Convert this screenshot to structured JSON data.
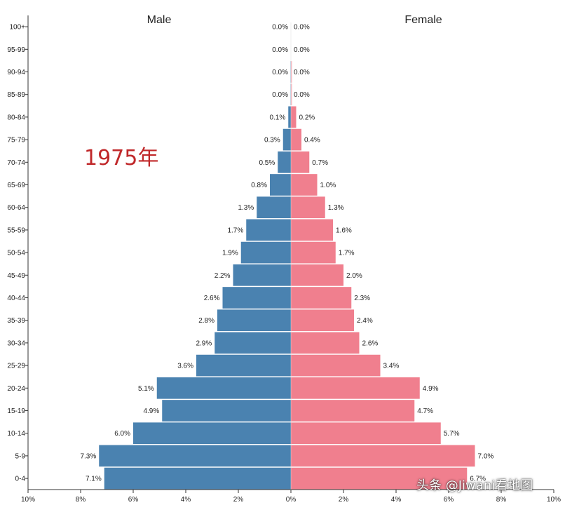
{
  "annotation": "1975年",
  "watermark": "头条 @Jiwani看地图",
  "colors": {
    "male": "#4a82b0",
    "female": "#f07f8e",
    "axis": "#333333"
  },
  "chart_data": {
    "type": "bar",
    "orientation": "horizontal",
    "series_labels": [
      "Male",
      "Female"
    ],
    "categories": [
      "100+",
      "95-99",
      "90-94",
      "85-89",
      "80-84",
      "75-79",
      "70-74",
      "65-69",
      "60-64",
      "55-59",
      "50-54",
      "45-49",
      "40-44",
      "35-39",
      "30-34",
      "25-29",
      "20-24",
      "15-19",
      "10-14",
      "5-9",
      "0-4"
    ],
    "series": [
      {
        "name": "Male",
        "values": [
          0.0,
          0.0,
          0.0,
          0.0,
          0.1,
          0.3,
          0.5,
          0.8,
          1.3,
          1.7,
          1.9,
          2.2,
          2.6,
          2.8,
          2.9,
          3.6,
          5.1,
          4.9,
          6.0,
          7.3,
          7.1
        ]
      },
      {
        "name": "Female",
        "values": [
          0.0,
          0.0,
          0.0,
          0.0,
          0.2,
          0.4,
          0.7,
          1.0,
          1.3,
          1.6,
          1.7,
          2.0,
          2.3,
          2.4,
          2.6,
          3.4,
          4.9,
          4.7,
          5.7,
          7.0,
          6.7
        ]
      }
    ],
    "value_labels": {
      "Male": [
        "0.0%",
        "0.0%",
        "0.0%",
        "0.0%",
        "0.1%",
        "0.3%",
        "0.5%",
        "0.8%",
        "1.3%",
        "1.7%",
        "1.9%",
        "2.2%",
        "2.6%",
        "2.8%",
        "2.9%",
        "3.6%",
        "5.1%",
        "4.9%",
        "6.0%",
        "7.3%",
        "7.1%"
      ],
      "Female": [
        "0.0%",
        "0.0%",
        "0.0%",
        "0.0%",
        "0.2%",
        "0.4%",
        "0.7%",
        "1.0%",
        "1.3%",
        "1.6%",
        "1.7%",
        "2.0%",
        "2.3%",
        "2.4%",
        "2.6%",
        "3.4%",
        "4.9%",
        "4.7%",
        "5.7%",
        "7.0%",
        "6.7%"
      ]
    },
    "xlim": [
      -10,
      10
    ],
    "xticks": [
      -10,
      -8,
      -6,
      -4,
      -2,
      0,
      2,
      4,
      6,
      8,
      10
    ],
    "xtick_labels": [
      "10%",
      "8%",
      "6%",
      "4%",
      "2%",
      "0%",
      "2%",
      "4%",
      "6%",
      "8%",
      "10%"
    ],
    "grid": false
  }
}
